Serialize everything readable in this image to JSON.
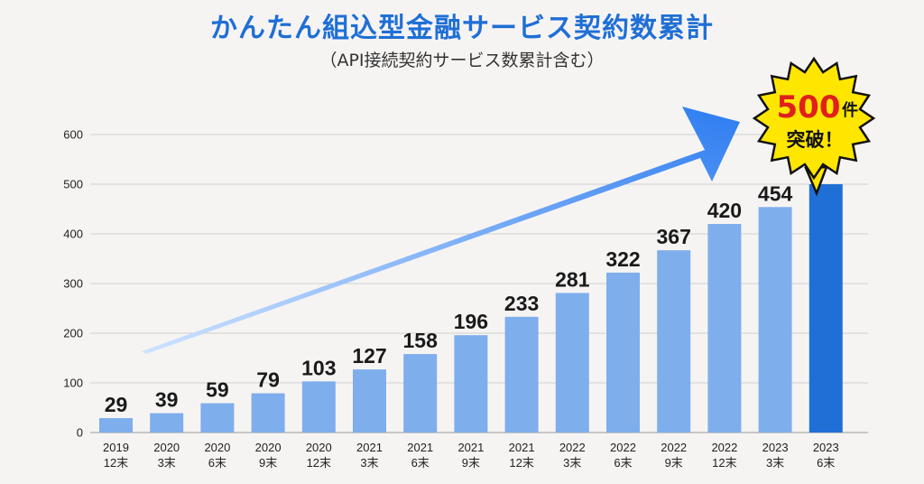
{
  "title": "かんたん組込型金融サービス契約数累計",
  "subtitle": "（API接続契約サービス数累計含む）",
  "callout": {
    "number": "500",
    "unit": "件",
    "line2": "突破！"
  },
  "colors": {
    "bar": "#7eaeec",
    "bar_highlight": "#1f6fd6",
    "title": "#1f6fd6",
    "callout_number": "#e0201c",
    "callout_fill": "#ffe600",
    "arrow_start": "#cfe3ff",
    "arrow_end": "#2c7cf0"
  },
  "chart_data": {
    "type": "bar",
    "title": "かんたん組込型金融サービス契約数累計",
    "subtitle": "（API接続契約サービス数累計含む）",
    "ylim": [
      0,
      600
    ],
    "yticks": [
      0,
      100,
      200,
      300,
      400,
      500,
      600
    ],
    "grid": true,
    "categories": [
      {
        "year": "2019",
        "period": "12末"
      },
      {
        "year": "2020",
        "period": "3末"
      },
      {
        "year": "2020",
        "period": "6末"
      },
      {
        "year": "2020",
        "period": "9末"
      },
      {
        "year": "2020",
        "period": "12末"
      },
      {
        "year": "2021",
        "period": "3末"
      },
      {
        "year": "2021",
        "period": "6末"
      },
      {
        "year": "2021",
        "period": "9末"
      },
      {
        "year": "2021",
        "period": "12末"
      },
      {
        "year": "2022",
        "period": "3末"
      },
      {
        "year": "2022",
        "period": "6末"
      },
      {
        "year": "2022",
        "period": "9末"
      },
      {
        "year": "2022",
        "period": "12末"
      },
      {
        "year": "2023",
        "period": "3末"
      },
      {
        "year": "2023",
        "period": "6末"
      }
    ],
    "values": [
      29,
      39,
      59,
      79,
      103,
      127,
      158,
      196,
      233,
      281,
      322,
      367,
      420,
      454,
      500
    ],
    "labels": [
      "29",
      "39",
      "59",
      "79",
      "103",
      "127",
      "158",
      "196",
      "233",
      "281",
      "322",
      "367",
      "420",
      "454",
      null
    ],
    "highlight_index": 14
  }
}
